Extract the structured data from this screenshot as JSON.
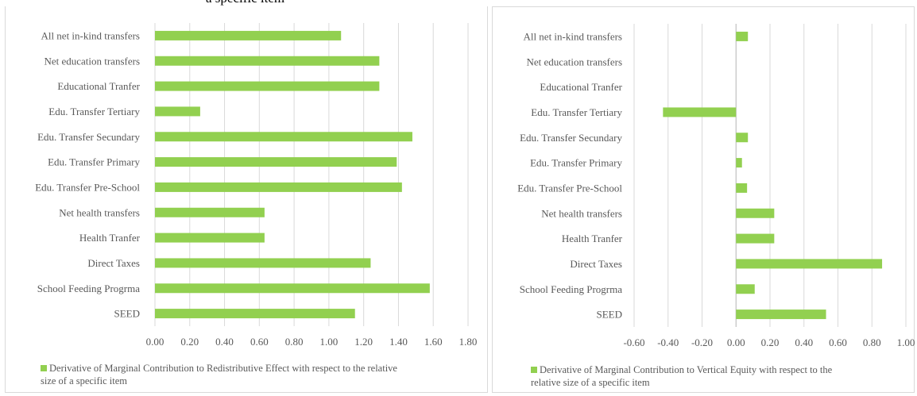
{
  "title_fragment": "a specific item",
  "colors": {
    "bar": "#92d050",
    "grid": "#d9d9d9",
    "text": "#595959"
  },
  "chart_data": [
    {
      "type": "bar",
      "orientation": "horizontal",
      "categories": [
        "All net in-kind transfers",
        "Net education transfers",
        "Educational Tranfer",
        "Edu. Transfer Tertiary",
        "Edu. Transfer Secundary",
        "Edu. Transfer Primary",
        "Edu. Transfer Pre-School",
        "Net health transfers",
        "Health Tranfer",
        "Direct Taxes",
        "School Feeding Progrma",
        "SEED"
      ],
      "series": [
        {
          "name": "Derivative of Marginal Contribution to Redistributive Effect with respect to the relative size of a specific item",
          "values": [
            1.07,
            1.29,
            1.29,
            0.26,
            1.48,
            1.39,
            1.42,
            0.63,
            0.63,
            1.24,
            1.58,
            1.15
          ]
        }
      ],
      "xlim": [
        0,
        1.8
      ],
      "xticks": [
        "0.00",
        "0.20",
        "0.40",
        "0.60",
        "0.80",
        "1.00",
        "1.20",
        "1.40",
        "1.60",
        "1.80"
      ],
      "grid": "vertical",
      "legend": "bottom",
      "legend_lines": [
        "Derivative of Marginal Contribution to Redistributive Effect with respect to the relative",
        "size of a specific item"
      ]
    },
    {
      "type": "bar",
      "orientation": "horizontal",
      "categories": [
        "All net in-kind transfers",
        "Net education transfers",
        "Educational Tranfer",
        "Edu. Transfer Tertiary",
        "Edu. Transfer Secundary",
        "Edu. Transfer Primary",
        "Edu. Transfer Pre-School",
        "Net health transfers",
        "Health Tranfer",
        "Direct Taxes",
        "School Feeding Progrma",
        "SEED"
      ],
      "series": [
        {
          "name": "Derivative of Marginal Contribution to Vertical Equity with respect to the relative size of a specific item",
          "values": [
            0.07,
            0.0,
            0.0,
            -0.43,
            0.07,
            0.035,
            0.065,
            0.225,
            0.225,
            0.86,
            0.11,
            0.53
          ]
        }
      ],
      "xlim": [
        -0.6,
        1.0
      ],
      "xticks": [
        "-0.60",
        "-0.40",
        "-0.20",
        "0.00",
        "0.20",
        "0.40",
        "0.60",
        "0.80",
        "1.00"
      ],
      "grid": "vertical",
      "legend": "bottom",
      "legend_lines": [
        "Derivative of Marginal Contribution to Vertical Equity with respect to the",
        "relative size of a specific item"
      ]
    }
  ]
}
